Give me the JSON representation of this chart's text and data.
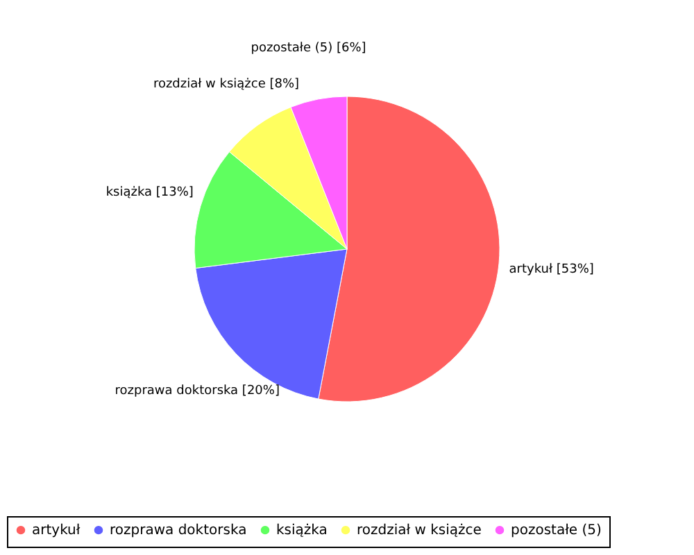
{
  "chart_data": {
    "type": "pie",
    "categories": [
      "artykuł",
      "rozprawa doktorska",
      "książka",
      "rozdział w książce",
      "pozostałe (5)"
    ],
    "values": [
      53,
      20,
      13,
      8,
      6
    ],
    "colors": [
      "#ff5f5f",
      "#5f5fff",
      "#5fff5f",
      "#ffff5f",
      "#ff5fff"
    ],
    "value_labels": [
      "artykuł [53%]",
      "rozprawa doktorska [20%]",
      "książka [13%]",
      "rozdział w książce [8%]",
      "pozostałe (5) [6%]"
    ],
    "legend": "bottom"
  }
}
